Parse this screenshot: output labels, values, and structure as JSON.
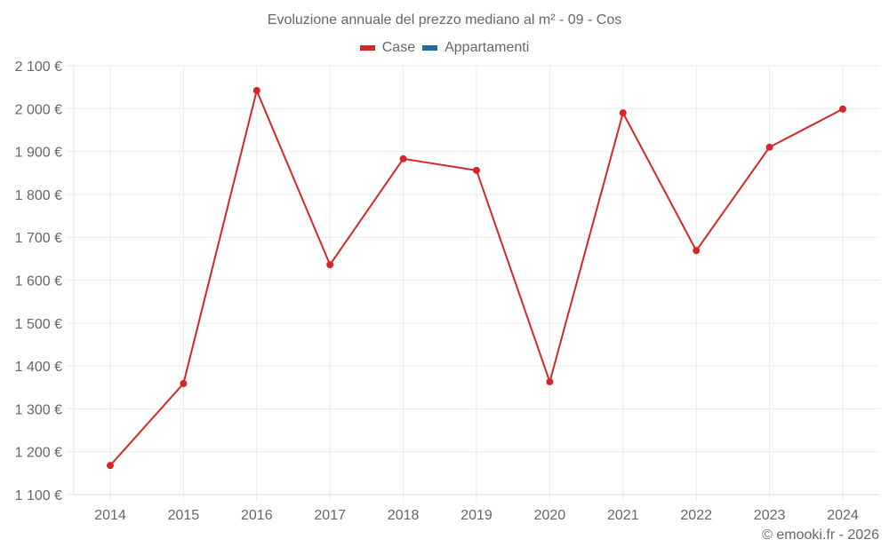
{
  "title": "Evoluzione annuale del prezzo mediano al m² - 09 - Cos",
  "legend": [
    {
      "label": "Case",
      "color": "#d62728"
    },
    {
      "label": "Appartamenti",
      "color": "#1f6aa5"
    }
  ],
  "footer": "© emooki.fr - 2026",
  "chart_data": {
    "type": "line",
    "title": "Evoluzione annuale del prezzo mediano al m² - 09 - Cos",
    "xlabel": "",
    "ylabel": "",
    "categories": [
      "2014",
      "2015",
      "2016",
      "2017",
      "2018",
      "2019",
      "2020",
      "2021",
      "2022",
      "2023",
      "2024"
    ],
    "series": [
      {
        "name": "Case",
        "color": "#d62728",
        "values": [
          1168,
          1359,
          2042,
          1636,
          1883,
          1856,
          1363,
          1990,
          1669,
          1910,
          1999
        ]
      },
      {
        "name": "Appartamenti",
        "color": "#1f6aa5",
        "values": []
      }
    ],
    "ylim": [
      1100,
      2100
    ],
    "yticks": [
      1100,
      1200,
      1300,
      1400,
      1500,
      1600,
      1700,
      1800,
      1900,
      2000,
      2100
    ],
    "ytick_labels": [
      "1 100 €",
      "1 200 €",
      "1 300 €",
      "1 400 €",
      "1 500 €",
      "1 600 €",
      "1 700 €",
      "1 800 €",
      "1 900 €",
      "2 000 €",
      "2 100 €"
    ],
    "grid": true,
    "legend_position": "top"
  }
}
